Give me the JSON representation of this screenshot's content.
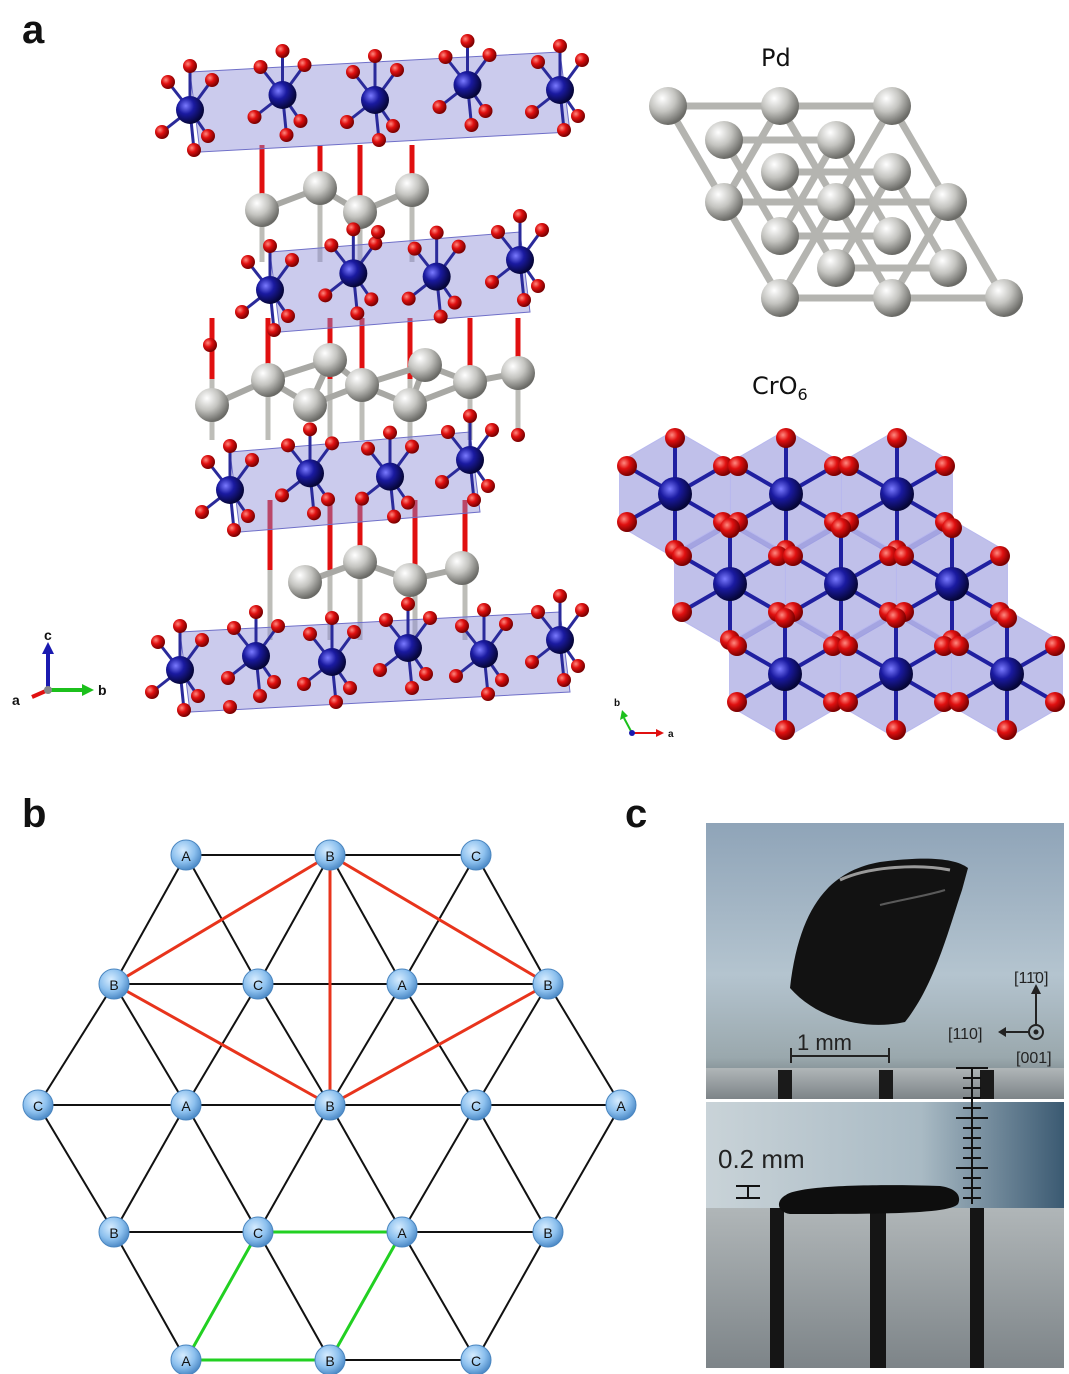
{
  "panels": {
    "a": {
      "letter": "a",
      "pd_label": "Pd",
      "cro6_label_main": "CrO",
      "cro6_label_sub": "6",
      "axes_side": {
        "c": "c",
        "a": "a",
        "b": "b"
      },
      "axes_top": {
        "b": "b",
        "a": "a"
      }
    },
    "b": {
      "letter": "b",
      "nodes": [
        {
          "label": "A"
        },
        {
          "label": "B"
        },
        {
          "label": "C"
        },
        {
          "label": "B"
        },
        {
          "label": "C"
        },
        {
          "label": "A"
        },
        {
          "label": "B"
        },
        {
          "label": "C"
        },
        {
          "label": "A"
        },
        {
          "label": "B"
        },
        {
          "label": "C"
        },
        {
          "label": "A"
        },
        {
          "label": "B"
        },
        {
          "label": "C"
        },
        {
          "label": "A"
        },
        {
          "label": "B"
        },
        {
          "label": "A"
        },
        {
          "label": "B"
        },
        {
          "label": "C"
        }
      ]
    },
    "c": {
      "letter": "c",
      "scale_top": "1 mm",
      "dir_1": "[11̄0]",
      "dir_2": "[110]",
      "dir_3": "[001]",
      "scale_bottom": "0.2 mm"
    }
  },
  "colors": {
    "oxygen": "#e01010",
    "chromium": "#1a1aa0",
    "palladium": "#c4c4c0",
    "octahedron": "#8c8cd8",
    "node_fill": "#8cc0ee",
    "red_edges": "#e8341c",
    "green_edges": "#22d022"
  }
}
